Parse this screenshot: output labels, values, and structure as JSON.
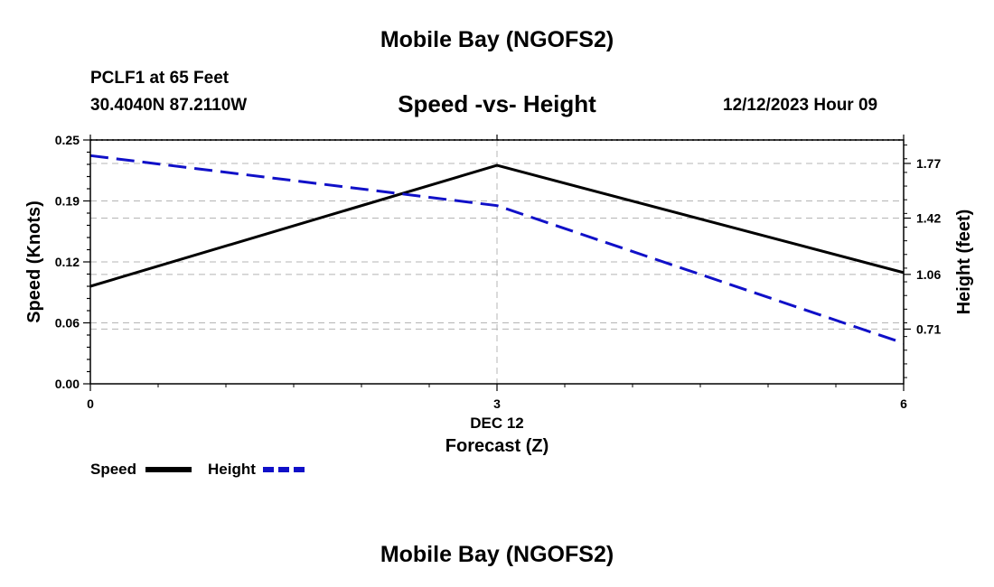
{
  "header": {
    "title": "Mobile Bay (NGOFS2)",
    "station": "PCLF1 at 65 Feet",
    "coords": "30.4040N  87.2110W",
    "subtitle": "Speed -vs- Height",
    "datetime": "12/12/2023 Hour 09"
  },
  "footer": {
    "title": "Mobile Bay (NGOFS2)"
  },
  "chart_data": {
    "type": "line",
    "title": "Speed -vs- Height",
    "xlabel": "Forecast (Z)",
    "x_date_label": "DEC 12",
    "ylabel": "Speed (Knots)",
    "y2label": "Height (feet)",
    "x": [
      0,
      3,
      6
    ],
    "xlim": [
      0,
      6
    ],
    "xticks": [
      "0",
      "3",
      "6"
    ],
    "ylim": [
      0,
      0.25
    ],
    "yticks": [
      "0.00",
      "0.06",
      "0.12",
      "0.19",
      "0.25"
    ],
    "ytick_values": [
      0,
      0.0625,
      0.125,
      0.1875,
      0.25
    ],
    "y2lim": [
      0.36,
      1.92
    ],
    "y2ticks": [
      "0.71",
      "1.06",
      "1.42",
      "1.77"
    ],
    "y2tick_values": [
      0.71,
      1.06,
      1.42,
      1.77
    ],
    "grid": true,
    "legend_position": "bottom-left",
    "series": [
      {
        "name": "Speed",
        "axis": "left",
        "color": "#000000",
        "style": "solid",
        "values": [
          0.1,
          0.224,
          0.114
        ]
      },
      {
        "name": "Height",
        "axis": "right",
        "color": "#1010c8",
        "style": "dashed",
        "values": [
          1.82,
          1.5,
          0.62
        ]
      }
    ]
  }
}
